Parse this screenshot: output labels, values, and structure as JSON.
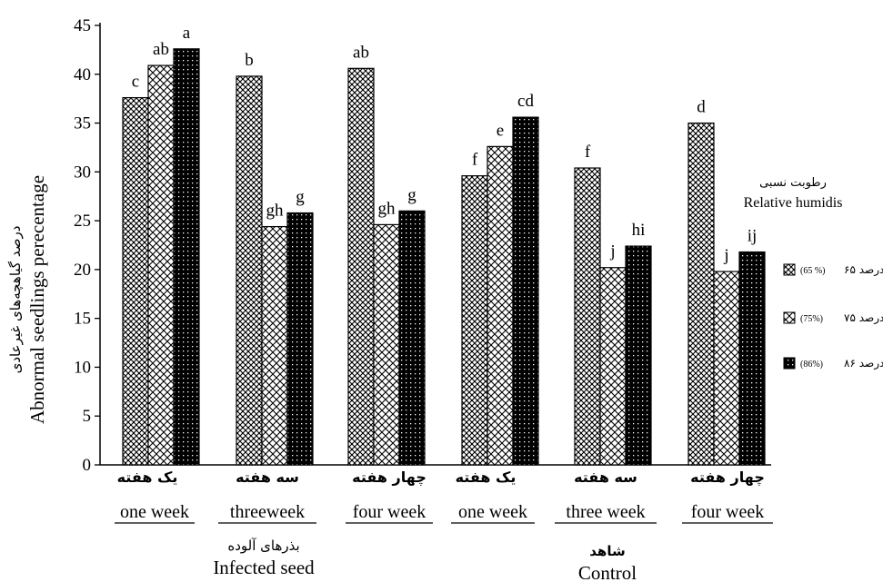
{
  "chart_data": {
    "type": "bar",
    "ylabel": "Abnormal seedlings perecentage",
    "ylabel_fa": "درصد گیاهچه‌های غیرعادی",
    "ylim": [
      0,
      45
    ],
    "yticks": [
      0,
      5,
      10,
      15,
      20,
      25,
      30,
      35,
      40,
      45
    ],
    "categories": [
      {
        "en": "one week",
        "fa": "یک هفته"
      },
      {
        "en": "threeweek",
        "fa": "سه هفته"
      },
      {
        "en": "four week",
        "fa": "چهار هفته"
      },
      {
        "en": "one week",
        "fa": "یک هفته"
      },
      {
        "en": "three week",
        "fa": "سه هفته"
      },
      {
        "en": "four week",
        "fa": "چهار هفته"
      }
    ],
    "groups": [
      {
        "en": "Infected seed",
        "fa": "بذرهای آلوده"
      },
      {
        "en": "Control",
        "fa": "شاهد"
      }
    ],
    "series": [
      {
        "name_fa": "۶۵ درصد",
        "name_en": "(65 %)",
        "pattern": "hatch",
        "values": [
          37.6,
          39.8,
          40.6,
          29.6,
          30.4,
          35.0
        ],
        "labels": [
          "c",
          "b",
          "ab",
          "f",
          "f",
          "d"
        ]
      },
      {
        "name_fa": "۷۵ درصد",
        "name_en": "(75%)",
        "pattern": "cross",
        "values": [
          40.9,
          24.4,
          24.6,
          32.6,
          20.2,
          19.8
        ],
        "labels": [
          "ab",
          "gh",
          "gh",
          "e",
          "j",
          "j"
        ]
      },
      {
        "name_fa": "۸۶ درصد",
        "name_en": "(86%)",
        "pattern": "dots",
        "values": [
          42.6,
          25.8,
          26.0,
          35.6,
          22.4,
          21.8
        ],
        "labels": [
          "a",
          "g",
          "g",
          "cd",
          "hi",
          "ij"
        ]
      }
    ],
    "legend_title_fa": "رطوبت نسبی",
    "legend_title_en": "Relative humidis",
    "legend_position": "right",
    "grid": false
  }
}
